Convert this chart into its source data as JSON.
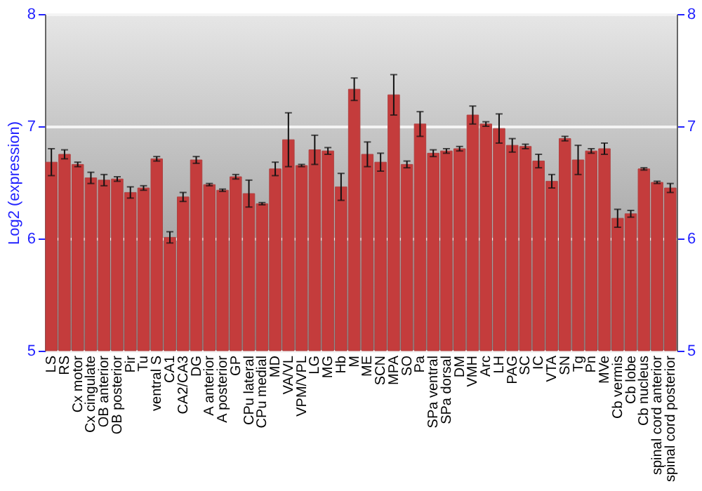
{
  "chart_data": {
    "type": "bar",
    "ylabel": "Log2 (expression)",
    "categories": [
      "LS",
      "RS",
      "Cx motor",
      "Cx cingulate",
      "OB anterior",
      "OB posterior",
      "Pir",
      "Tu",
      "ventral S",
      "CA1",
      "CA2/CA3",
      "DG",
      "A anterior",
      "A posterior",
      "GP",
      "CPu lateral",
      "CPu medial",
      "MD",
      "VA/VL",
      "VPM/VPL",
      "LG",
      "MG",
      "Hb",
      "M",
      "ME",
      "SCN",
      "MPA",
      "SO",
      "Pa",
      "SPa ventral",
      "SPa dorsal",
      "DM",
      "VMH",
      "Arc",
      "LH",
      "PAG",
      "SC",
      "IC",
      "VTA",
      "SN",
      "Tg",
      "Pn",
      "MVe",
      "Cb vermis",
      "Cb lobe",
      "Cb nucleus",
      "spinal cord anterior",
      "spinal cord posterior"
    ],
    "values": [
      6.68,
      6.75,
      6.66,
      6.54,
      6.52,
      6.53,
      6.41,
      6.45,
      6.71,
      6.01,
      6.37,
      6.7,
      6.48,
      6.43,
      6.55,
      6.4,
      6.31,
      6.62,
      6.88,
      6.65,
      6.79,
      6.78,
      6.46,
      7.33,
      6.75,
      6.68,
      7.28,
      6.66,
      7.02,
      6.76,
      6.78,
      6.8,
      7.1,
      7.02,
      6.98,
      6.83,
      6.82,
      6.69,
      6.51,
      6.89,
      6.7,
      6.78,
      6.8,
      6.18,
      6.22,
      6.62,
      6.5,
      6.45
    ],
    "errors": [
      0.12,
      0.04,
      0.02,
      0.05,
      0.05,
      0.02,
      0.05,
      0.02,
      0.02,
      0.05,
      0.04,
      0.03,
      0.01,
      0.01,
      0.02,
      0.12,
      0.01,
      0.06,
      0.24,
      0.01,
      0.13,
      0.03,
      0.12,
      0.1,
      0.11,
      0.08,
      0.18,
      0.03,
      0.11,
      0.03,
      0.02,
      0.02,
      0.08,
      0.02,
      0.13,
      0.06,
      0.02,
      0.06,
      0.06,
      0.02,
      0.13,
      0.02,
      0.05,
      0.08,
      0.03,
      0.01,
      0.01,
      0.04
    ],
    "color": "#c43c3c",
    "ylim": [
      5,
      8
    ],
    "yticks": [
      5,
      6,
      7,
      8
    ],
    "y2lim": [
      5,
      8
    ],
    "y2ticks": [
      5,
      6,
      7,
      8
    ],
    "grid": "y"
  }
}
